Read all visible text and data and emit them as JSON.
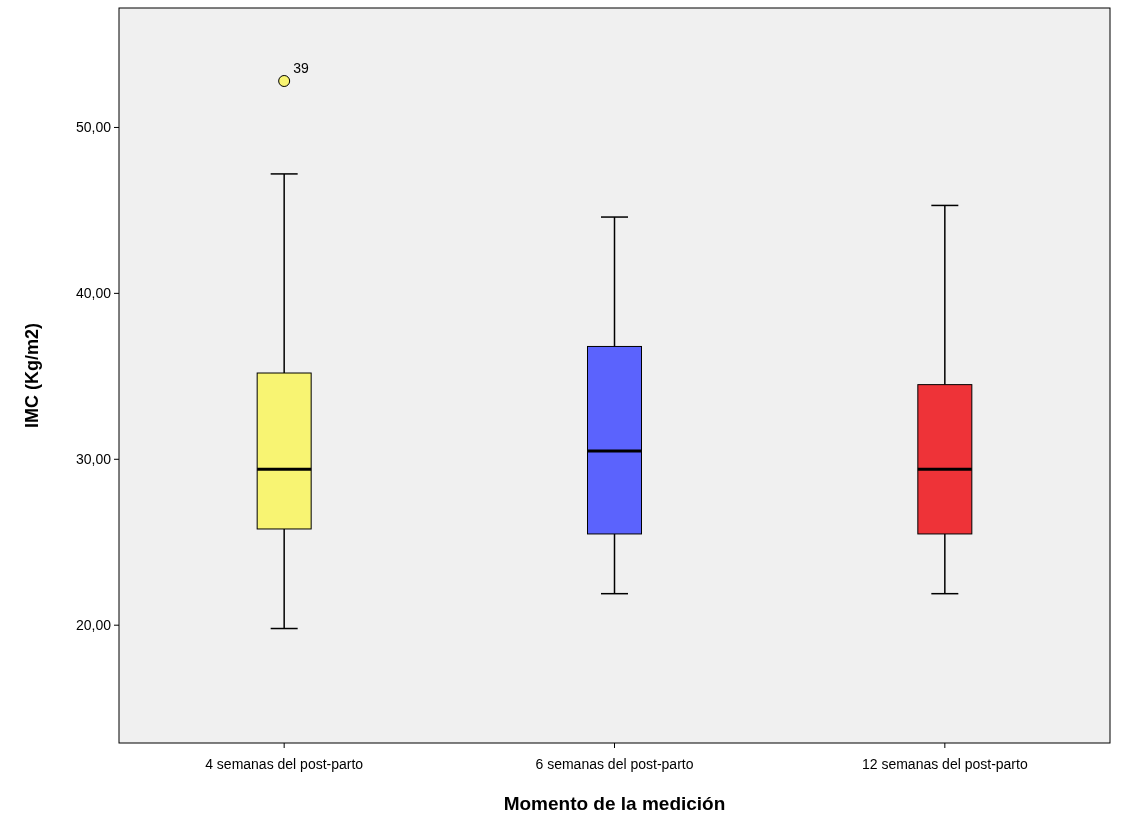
{
  "chart_data": {
    "type": "box",
    "xlabel": "Momento de la medición",
    "ylabel": "IMC (Kg/m2)",
    "categories": [
      "4 semanas del post-parto",
      "6 semanas del post-parto",
      "12 semanas del post-parto"
    ],
    "boxes": [
      {
        "low": 19.8,
        "q1": 25.8,
        "median": 29.4,
        "q3": 35.2,
        "high": 47.2,
        "outliers": [
          52.8
        ]
      },
      {
        "low": 21.9,
        "q1": 25.5,
        "median": 30.5,
        "q3": 36.8,
        "high": 44.6
      },
      {
        "low": 21.9,
        "q1": 25.5,
        "median": 29.4,
        "q3": 34.5,
        "high": 45.3
      }
    ],
    "colors": [
      "#f8f472",
      "#5b63fd",
      "#ee3338"
    ],
    "ylim": [
      12.9,
      57.2
    ],
    "yticks": [
      {
        "value": 20,
        "label": "20,00"
      },
      {
        "value": 30,
        "label": "30,00"
      },
      {
        "value": 40,
        "label": "40,00"
      },
      {
        "value": 50,
        "label": "50,00"
      }
    ],
    "annotations": [
      "39"
    ],
    "grid": false
  }
}
